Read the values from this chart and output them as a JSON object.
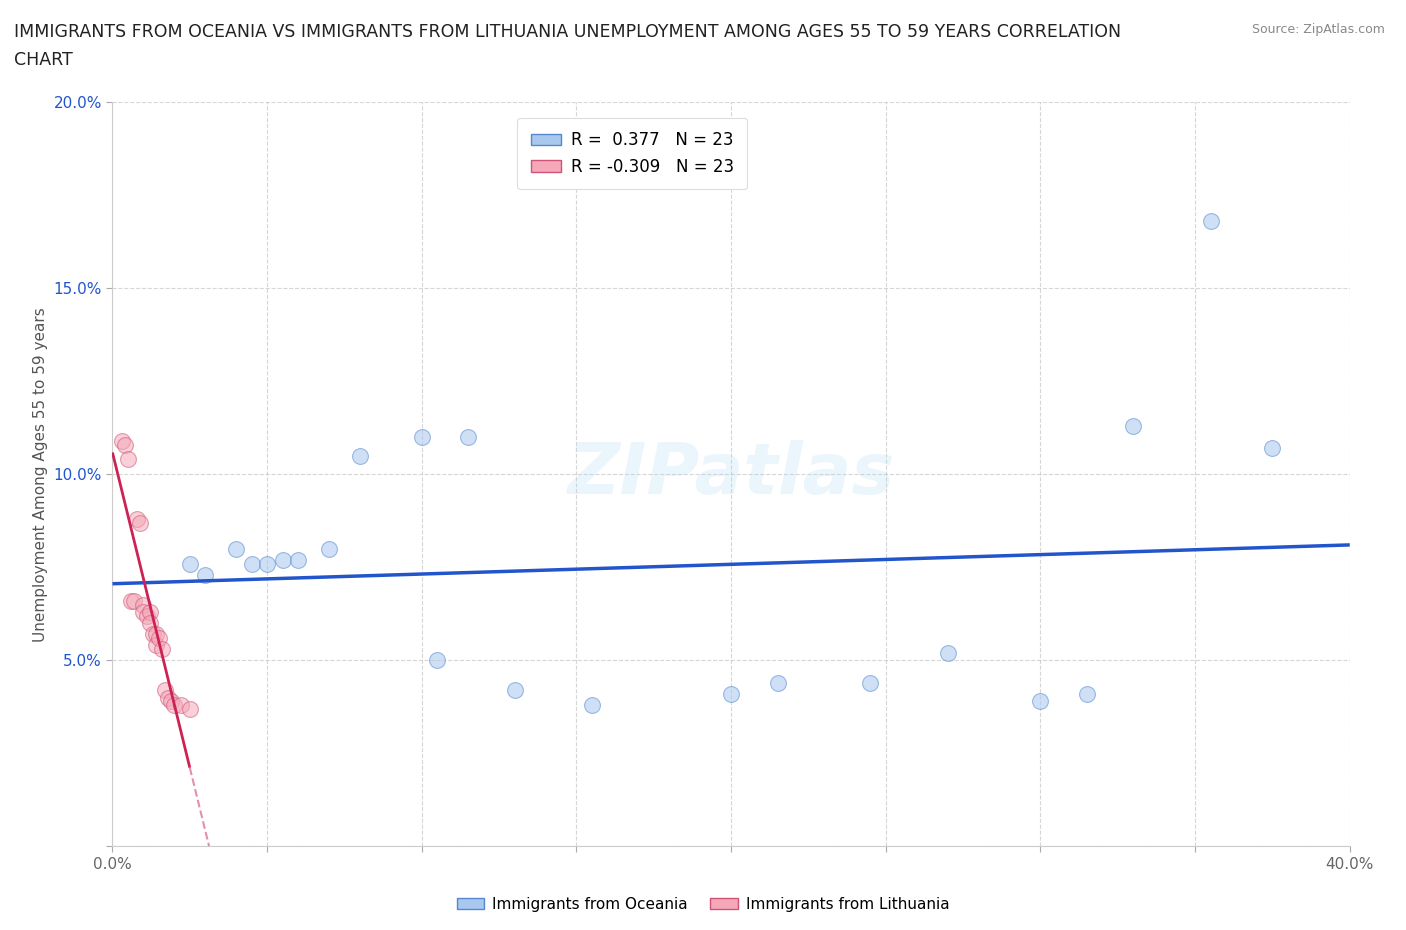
{
  "title_line1": "IMMIGRANTS FROM OCEANIA VS IMMIGRANTS FROM LITHUANIA UNEMPLOYMENT AMONG AGES 55 TO 59 YEARS CORRELATION",
  "title_line2": "CHART",
  "source": "Source: ZipAtlas.com",
  "ylabel": "Unemployment Among Ages 55 to 59 years",
  "xlim": [
    0.0,
    0.4
  ],
  "ylim": [
    0.0,
    0.2
  ],
  "xticks": [
    0.0,
    0.05,
    0.1,
    0.15,
    0.2,
    0.25,
    0.3,
    0.35,
    0.4
  ],
  "xticklabels": [
    "0.0%",
    "",
    "",
    "",
    "",
    "",
    "",
    "",
    "40.0%"
  ],
  "yticks": [
    0.0,
    0.05,
    0.1,
    0.15,
    0.2
  ],
  "yticklabels": [
    "",
    "5.0%",
    "10.0%",
    "15.0%",
    "20.0%"
  ],
  "oceania_x": [
    0.025,
    0.03,
    0.04,
    0.045,
    0.05,
    0.055,
    0.06,
    0.07,
    0.08,
    0.1,
    0.105,
    0.115,
    0.13,
    0.155,
    0.2,
    0.215,
    0.245,
    0.27,
    0.3,
    0.315,
    0.33,
    0.355,
    0.375
  ],
  "oceania_y": [
    0.076,
    0.073,
    0.08,
    0.076,
    0.076,
    0.077,
    0.077,
    0.08,
    0.105,
    0.11,
    0.05,
    0.11,
    0.042,
    0.038,
    0.041,
    0.044,
    0.044,
    0.052,
    0.039,
    0.041,
    0.113,
    0.168,
    0.107
  ],
  "lithuania_x": [
    0.003,
    0.004,
    0.005,
    0.006,
    0.007,
    0.008,
    0.009,
    0.01,
    0.01,
    0.011,
    0.012,
    0.012,
    0.013,
    0.014,
    0.014,
    0.015,
    0.016,
    0.017,
    0.018,
    0.019,
    0.02,
    0.022,
    0.025
  ],
  "lithuania_y": [
    0.109,
    0.108,
    0.104,
    0.066,
    0.066,
    0.088,
    0.087,
    0.065,
    0.063,
    0.062,
    0.063,
    0.06,
    0.057,
    0.057,
    0.054,
    0.056,
    0.053,
    0.042,
    0.04,
    0.039,
    0.038,
    0.038,
    0.037
  ],
  "oceania_color": "#a8c8f0",
  "oceania_edge": "#5588cc",
  "lithuania_color": "#f5a8b8",
  "lithuania_edge": "#cc5577",
  "oceania_line_color": "#2255cc",
  "lithuania_line_color": "#cc2255",
  "R_oceania": 0.377,
  "N_oceania": 23,
  "R_lithuania": -0.309,
  "N_lithuania": 23,
  "marker_size": 130,
  "alpha": 0.55,
  "background_color": "#ffffff",
  "grid_color": "#bbbbbb",
  "title_fontsize": 12.5,
  "label_fontsize": 11,
  "tick_fontsize": 11,
  "source_fontsize": 9,
  "legend_fontsize": 12
}
